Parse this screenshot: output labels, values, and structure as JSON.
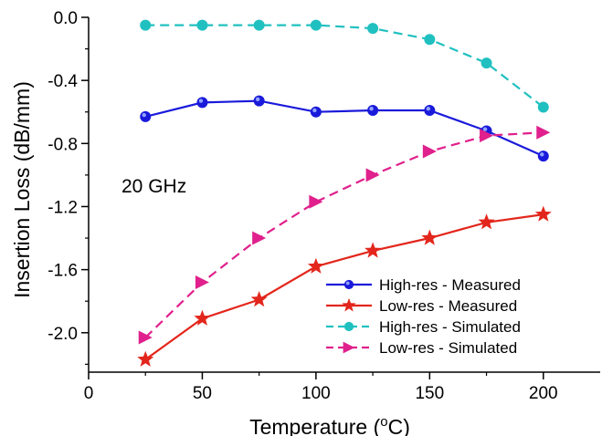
{
  "chart_data": {
    "type": "line",
    "title": "",
    "annotation": "20 GHz",
    "xlabel": "Temperature (",
    "xlabel_sup": "o",
    "xlabel_unit": "C)",
    "ylabel": "Insertion Loss (dB/mm)",
    "xlim": [
      0,
      225
    ],
    "ylim": [
      -2.25,
      0.0
    ],
    "x_ticks": [
      0,
      50,
      100,
      150,
      200
    ],
    "x_tick_labels": [
      "0",
      "50",
      "100",
      "150",
      "200"
    ],
    "y_ticks": [
      0.0,
      -0.4,
      -0.8,
      -1.2,
      -1.6,
      -2.0
    ],
    "y_tick_labels": [
      "0.0",
      "-0.4",
      "-0.8",
      "-1.2",
      "-1.6",
      "-2.0"
    ],
    "grid": false,
    "legend_position": "bottom-right",
    "series": [
      {
        "name": "High-res - Measured",
        "color": "#1a1adb",
        "marker": "circle",
        "line": "solid",
        "x": [
          25,
          50,
          75,
          100,
          125,
          150,
          175,
          200
        ],
        "y": [
          -0.63,
          -0.54,
          -0.53,
          -0.6,
          -0.59,
          -0.59,
          -0.72,
          -0.88
        ]
      },
      {
        "name": "Low-res - Measured",
        "color": "#e3261c",
        "marker": "star",
        "line": "solid",
        "x": [
          25,
          50,
          75,
          100,
          125,
          150,
          175,
          200
        ],
        "y": [
          -2.17,
          -1.91,
          -1.79,
          -1.58,
          -1.48,
          -1.4,
          -1.3,
          -1.25
        ]
      },
      {
        "name": "High-res - Simulated",
        "color": "#21c0c0",
        "marker": "circle",
        "line": "dashed",
        "x": [
          25,
          50,
          75,
          100,
          125,
          150,
          175,
          200
        ],
        "y": [
          -0.05,
          -0.05,
          -0.05,
          -0.05,
          -0.07,
          -0.14,
          -0.29,
          -0.57
        ]
      },
      {
        "name": "Low-res - Simulated",
        "color": "#e0208c",
        "marker": "triangle-right",
        "line": "dashed",
        "x": [
          25,
          50,
          75,
          100,
          125,
          150,
          175,
          200
        ],
        "y": [
          -2.03,
          -1.68,
          -1.4,
          -1.17,
          -1.0,
          -0.85,
          -0.75,
          -0.73
        ]
      }
    ]
  }
}
